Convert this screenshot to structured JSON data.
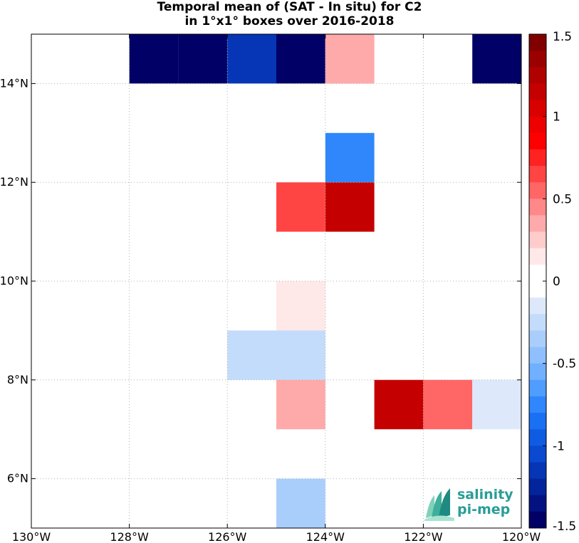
{
  "chart_data": {
    "type": "heatmap",
    "title": "Temporal mean of (SAT - In situ) for C2",
    "subtitle": "in 1°x1° boxes over 2016-2018",
    "xlim": [
      -130,
      -120
    ],
    "ylim": [
      5,
      15
    ],
    "x_ticks": [
      -130,
      -128,
      -126,
      -124,
      -122,
      -120
    ],
    "x_tick_labels": [
      "130°W",
      "128°W",
      "126°W",
      "124°W",
      "122°W",
      "120°W"
    ],
    "y_ticks": [
      6,
      8,
      10,
      12,
      14
    ],
    "y_tick_labels": [
      "6°N",
      "8°N",
      "10°N",
      "12°N",
      "14°N"
    ],
    "grid": true,
    "cell_size_deg": 1,
    "cells": [
      {
        "lon": -128,
        "lat": 14,
        "value": -1.5
      },
      {
        "lon": -127,
        "lat": 14,
        "value": -1.5
      },
      {
        "lon": -126,
        "lat": 14,
        "value": -1.1
      },
      {
        "lon": -125,
        "lat": 14,
        "value": -1.5
      },
      {
        "lon": -124,
        "lat": 14,
        "value": 0.3
      },
      {
        "lon": -121,
        "lat": 14,
        "value": -1.5
      },
      {
        "lon": -124,
        "lat": 12,
        "value": -0.7
      },
      {
        "lon": -125,
        "lat": 11,
        "value": 0.7
      },
      {
        "lon": -124,
        "lat": 11,
        "value": 1.1
      },
      {
        "lon": -125,
        "lat": 9,
        "value": 0.15
      },
      {
        "lon": -126,
        "lat": 8,
        "value": -0.25
      },
      {
        "lon": -125,
        "lat": 8,
        "value": -0.25
      },
      {
        "lon": -125,
        "lat": 7,
        "value": 0.4
      },
      {
        "lon": -123,
        "lat": 7,
        "value": 1.1
      },
      {
        "lon": -122,
        "lat": 7,
        "value": 0.6
      },
      {
        "lon": -121,
        "lat": 7,
        "value": -0.1
      },
      {
        "lon": -125,
        "lat": 5,
        "value": -0.35
      }
    ],
    "colorbar": {
      "range": [
        -1.5,
        1.5
      ],
      "ticks": [
        1.5,
        1,
        0.5,
        0,
        -0.5,
        -1,
        -1.5
      ],
      "tick_labels": [
        "1.5",
        "1",
        "0.5",
        "0",
        "-0.5",
        "-1",
        "-1.5"
      ],
      "colors": [
        "#800000",
        "#9a0000",
        "#b00000",
        "#c50000",
        "#d90000",
        "#ee0000",
        "#ff0000",
        "#ff2222",
        "#ff4444",
        "#ff6666",
        "#ff8888",
        "#ffaaaa",
        "#ffcccc",
        "#ffe8e8",
        "#ffffff",
        "#ffffff",
        "#dde9fb",
        "#c4dcfb",
        "#aacefc",
        "#8fc0fd",
        "#70b0fe",
        "#4f9dff",
        "#2f87fb",
        "#1a70f2",
        "#0f5ce3",
        "#0a49d0",
        "#0636b5",
        "#04249b",
        "#021381",
        "#000066"
      ]
    },
    "logo": {
      "line1": "salinity",
      "line2": "pi-mep"
    }
  }
}
